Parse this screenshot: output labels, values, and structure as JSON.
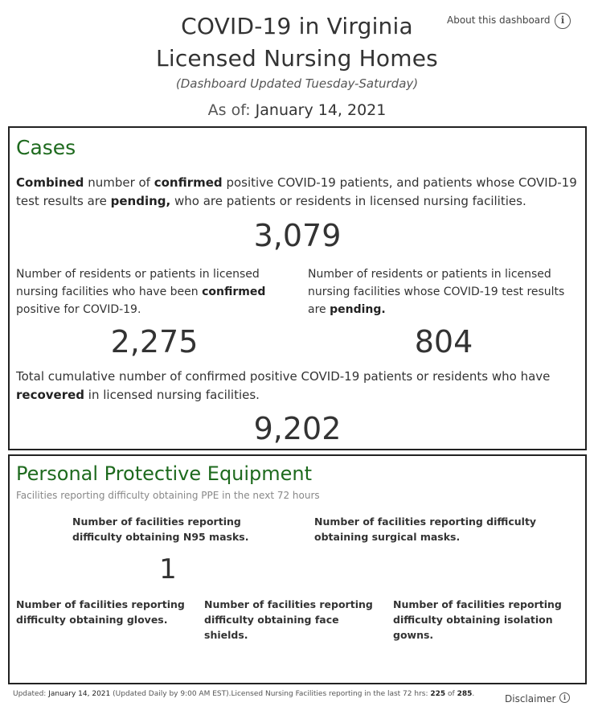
{
  "header": {
    "title_line1": "COVID-19 in Virginia",
    "title_line2": "Licensed Nursing Homes",
    "subtitle": "(Dashboard Updated Tuesday-Saturday)",
    "as_of_label": "As of: ",
    "as_of_date": "January 14, 2021",
    "about_link": "About this dashboard",
    "about_icon": "info-icon"
  },
  "cases": {
    "title": "Cases",
    "combined": {
      "p1": "Combined",
      "p2": " number of ",
      "p3": "confirmed",
      "p4": " positive COVID-19 patients, and patients whose COVID-19 test results are ",
      "p5": "pending,",
      "p6": " who are patients or residents in licensed nursing facilities.",
      "value": "3,079"
    },
    "confirmed": {
      "p1": "Number of residents or patients in licensed nursing facilities who have been ",
      "p2": "confirmed",
      "p3": " positive for COVID-19.",
      "value": "2,275"
    },
    "pending": {
      "p1": "Number of residents or patients in licensed nursing facilities whose COVID-19 test results are ",
      "p2": "pending.",
      "value": "804"
    },
    "recovered": {
      "p1": "Total cumulative number of confirmed positive COVID-19 patients or residents who have ",
      "p2": "recovered",
      "p3": " in licensed nursing facilities.",
      "value": "9,202"
    }
  },
  "ppe": {
    "title": "Personal Protective Equipment",
    "subtitle": "Facilities reporting difficulty obtaining PPE in the next 72 hours",
    "n95_label": "Number of facilities reporting difficulty obtaining N95 masks.",
    "n95_value": "1",
    "surgical_label": "Number of facilities reporting difficulty obtaining surgical masks.",
    "gloves_label": "Number of facilities reporting difficulty obtaining gloves.",
    "face_label": "Number of facilities reporting difficulty obtaining face shields.",
    "gowns_label": "Number of facilities reporting difficulty obtaining isolation gowns."
  },
  "footer": {
    "updated_label": "Updated: ",
    "updated_date": "January 14, 2021",
    "updated_note": " (Updated Daily by 9:00 AM EST).Licensed Nursing Facilities reporting in the last 72 hrs: ",
    "reporting_count": "225",
    "of_text": " of ",
    "total_count": "285",
    "period": ".",
    "disclaimer": "Disclaimer",
    "disclaimer_icon": "info-icon"
  },
  "colors": {
    "section_title": "#1e6a1e",
    "panel_border": "#222222"
  }
}
